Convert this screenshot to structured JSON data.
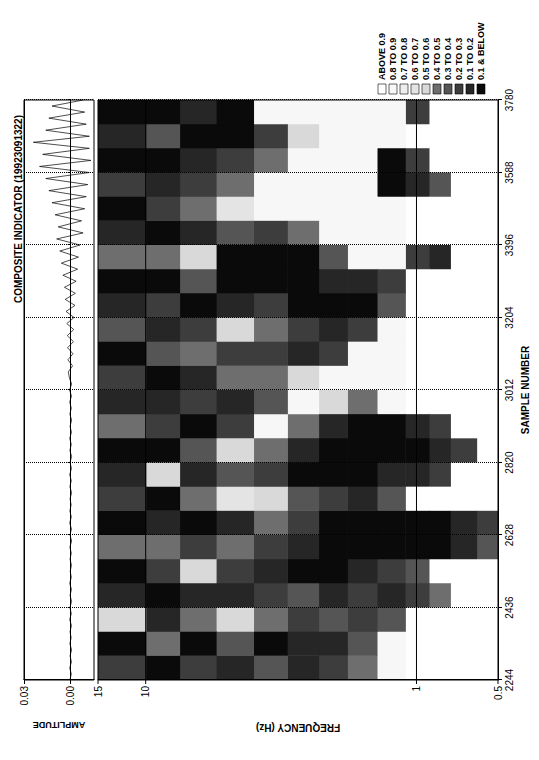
{
  "chart_data": [
    {
      "type": "line",
      "title": "COMPOSITE INDICATOR (19923091322)",
      "y_label": "AMPLITUDE",
      "color": "#000000",
      "grid": true,
      "tick_labels": "y",
      "xlim": [
        2244,
        3780
      ],
      "xticks": [
        2244,
        2436,
        2628,
        2820,
        3012,
        3204,
        3396,
        3588,
        3780
      ],
      "ylim": [
        -0.015,
        0.03
      ],
      "yticks": [
        {
          "value": 0,
          "label": "0.00"
        },
        {
          "value": 0.03,
          "label": "0.03"
        }
      ],
      "x": [
        2244,
        2260,
        2276,
        2292,
        2308,
        2324,
        2340,
        2356,
        2372,
        2388,
        2404,
        2420,
        2436,
        2452,
        2468,
        2484,
        2500,
        2516,
        2532,
        2548,
        2564,
        2580,
        2596,
        2612,
        2628,
        2644,
        2660,
        2676,
        2692,
        2708,
        2724,
        2740,
        2756,
        2772,
        2788,
        2804,
        2820,
        2836,
        2852,
        2868,
        2884,
        2900,
        2916,
        2932,
        2948,
        2964,
        2980,
        2996,
        3012,
        3028,
        3044,
        3060,
        3076,
        3092,
        3108,
        3124,
        3140,
        3156,
        3172,
        3188,
        3204,
        3220,
        3236,
        3252,
        3268,
        3284,
        3300,
        3316,
        3332,
        3348,
        3364,
        3380,
        3396,
        3412,
        3428,
        3444,
        3460,
        3476,
        3492,
        3508,
        3524,
        3540,
        3556,
        3572,
        3588,
        3604,
        3620,
        3636,
        3652,
        3668,
        3684,
        3700,
        3716,
        3732,
        3748,
        3764,
        3780
      ],
      "values": [
        0.0005,
        -0.0004,
        0.0006,
        -0.0005,
        0.0004,
        -0.0006,
        0.0005,
        -0.0003,
        0.0004,
        -0.0005,
        0.0006,
        -0.0004,
        0.0005,
        -0.0006,
        0.0004,
        -0.0005,
        0.0006,
        -0.0004,
        0.0003,
        -0.0005,
        0.0004,
        -0.0004,
        0.0005,
        -0.0006,
        0.0004,
        -0.0005,
        0.0006,
        -0.0004,
        0.0005,
        -0.0003,
        0.0004,
        -0.0006,
        0.0005,
        -0.0004,
        0.0006,
        -0.0005,
        0.0004,
        -0.0006,
        0.0005,
        -0.0004,
        0.0006,
        -0.0005,
        0.0004,
        -0.0006,
        0.0005,
        -0.0004,
        0.0006,
        -0.0005,
        0.0007,
        -0.0006,
        0.0008,
        0.0015,
        -0.0012,
        0.0018,
        -0.0015,
        0.002,
        -0.0018,
        0.0022,
        -0.002,
        0.0025,
        -0.0022,
        0.003,
        -0.0028,
        0.0035,
        -0.003,
        0.004,
        -0.0035,
        0.005,
        -0.0045,
        0.006,
        -0.005,
        0.007,
        -0.006,
        0.009,
        -0.008,
        0.008,
        -0.007,
        0.01,
        -0.009,
        0.012,
        -0.01,
        0.014,
        -0.011,
        0.016,
        -0.012,
        0.02,
        -0.013,
        0.018,
        -0.012,
        0.024,
        -0.012,
        0.016,
        -0.01,
        0.014,
        -0.009,
        0.012,
        -0.008
      ]
    },
    {
      "type": "heatmap",
      "x_label": "SAMPLE NUMBER",
      "y_label": "FREQUENCY (Hz)",
      "log": "y",
      "grid": true,
      "legend": "right",
      "xlim": [
        2244,
        3780
      ],
      "xticks": [
        2244,
        2436,
        2628,
        2820,
        3012,
        3204,
        3396,
        3588,
        3780
      ],
      "ylim": [
        0.5,
        15
      ],
      "yticks": [
        0.5,
        1,
        10,
        15
      ],
      "cells": {
        "x_edges": [
          2244,
          2308,
          2372,
          2436,
          2500,
          2564,
          2628,
          2692,
          2756,
          2820,
          2884,
          2948,
          3012,
          3076,
          3140,
          3204,
          3268,
          3332,
          3396,
          3460,
          3524,
          3588,
          3652,
          3716,
          3780
        ],
        "y_edges": [
          0.5,
          0.6,
          0.75,
          0.9,
          1.1,
          1.4,
          1.8,
          2.3,
          3,
          4,
          5.5,
          7.5,
          10,
          15
        ],
        "values": [
          [
            0.95,
            0.95,
            0.95,
            0.95,
            0.95,
            0.4,
            0.3,
            0.95,
            0.95,
            0.95,
            0.95,
            0.95,
            0.95,
            0.95,
            0.95,
            0.95,
            0.95,
            0.95,
            0.95,
            0.95,
            0.95,
            0.95,
            0.95,
            0.95
          ],
          [
            0.95,
            0.95,
            0.95,
            0.95,
            0.95,
            0.2,
            0.15,
            0.95,
            0.95,
            0.3,
            0.95,
            0.95,
            0.95,
            0.95,
            0.95,
            0.95,
            0.95,
            0.95,
            0.95,
            0.95,
            0.95,
            0.95,
            0.95,
            0.95
          ],
          [
            0.95,
            0.95,
            0.95,
            0.45,
            0.95,
            0.1,
            0.1,
            0.95,
            0.3,
            0.15,
            0.3,
            0.95,
            0.95,
            0.95,
            0.95,
            0.95,
            0.95,
            0.2,
            0.95,
            0.95,
            0.35,
            0.95,
            0.95,
            0.95
          ],
          [
            0.95,
            0.95,
            0.95,
            0.3,
            0.4,
            0.05,
            0.05,
            0.95,
            0.2,
            0.05,
            0.15,
            0.95,
            0.95,
            0.95,
            0.95,
            0.95,
            0.95,
            0.25,
            0.95,
            0.95,
            0.2,
            0.25,
            0.95,
            0.3
          ],
          [
            0.9,
            0.9,
            0.4,
            0.2,
            0.3,
            0.05,
            0.05,
            0.35,
            0.15,
            0.05,
            0.1,
            0.9,
            0.9,
            0.9,
            0.9,
            0.35,
            0.3,
            0.9,
            0.9,
            0.9,
            0.1,
            0.1,
            0.9,
            0.9
          ],
          [
            0.5,
            0.4,
            0.25,
            0.3,
            0.15,
            0.05,
            0.05,
            0.2,
            0.1,
            0.05,
            0.1,
            0.5,
            0.9,
            0.9,
            0.3,
            0.1,
            0.2,
            0.9,
            0.9,
            0.9,
            0.9,
            0.9,
            0.9,
            0.9
          ],
          [
            0.3,
            0.2,
            0.35,
            0.15,
            0.1,
            0.05,
            0.1,
            0.25,
            0.05,
            0.1,
            0.2,
            0.6,
            0.9,
            0.3,
            0.15,
            0.05,
            0.15,
            0.4,
            0.9,
            0.9,
            0.9,
            0.9,
            0.9,
            0.9
          ],
          [
            0.2,
            0.15,
            0.3,
            0.4,
            0.1,
            0.15,
            0.3,
            0.4,
            0.1,
            0.2,
            0.5,
            0.9,
            0.6,
            0.2,
            0.3,
            0.1,
            0.05,
            0.1,
            0.5,
            0.9,
            0.9,
            0.9,
            0.6,
            0.9
          ],
          [
            0.35,
            0.1,
            0.5,
            0.3,
            0.2,
            0.3,
            0.5,
            0.6,
            0.3,
            0.5,
            0.9,
            0.4,
            0.5,
            0.3,
            0.5,
            0.3,
            0.05,
            0.05,
            0.3,
            0.9,
            0.9,
            0.5,
            0.3,
            0.9
          ],
          [
            0.2,
            0.4,
            0.6,
            0.15,
            0.3,
            0.5,
            0.2,
            0.7,
            0.4,
            0.6,
            0.3,
            0.2,
            0.5,
            0.3,
            0.6,
            0.2,
            0.1,
            0.1,
            0.4,
            0.7,
            0.5,
            0.3,
            0.1,
            0.05
          ],
          [
            0.3,
            0.1,
            0.5,
            0.2,
            0.6,
            0.3,
            0.1,
            0.5,
            0.2,
            0.4,
            0.1,
            0.3,
            0.2,
            0.5,
            0.3,
            0.1,
            0.4,
            0.6,
            0.2,
            0.5,
            0.3,
            0.2,
            0.1,
            0.2
          ],
          [
            0.1,
            0.5,
            0.2,
            0.1,
            0.3,
            0.5,
            0.2,
            0.1,
            0.6,
            0.1,
            0.3,
            0.2,
            0.1,
            0.4,
            0.2,
            0.3,
            0.1,
            0.5,
            0.1,
            0.3,
            0.2,
            0.1,
            0.4,
            0.1
          ],
          [
            0.3,
            0.1,
            0.6,
            0.2,
            0.1,
            0.5,
            0.1,
            0.3,
            0.2,
            0.1,
            0.5,
            0.2,
            0.3,
            0.1,
            0.4,
            0.2,
            0.1,
            0.5,
            0.2,
            0.1,
            0.3,
            0.1,
            0.2,
            0.1
          ]
        ]
      },
      "color_scale": {
        "labels": [
          "ABOVE 0.9",
          "0.8 TO 0.9",
          "0.7 TO 0.8",
          "0.6 TO 0.7",
          "0.5 TO 0.6",
          "0.4 TO 0.5",
          "0.3 TO 0.4",
          "0.2 TO 0.3",
          "0.1 TO 0.2",
          "0.1 & BELOW"
        ],
        "lower_bounds": [
          0.9,
          0.8,
          0.7,
          0.6,
          0.5,
          0.4,
          0.3,
          0.2,
          0.1,
          null
        ],
        "colors": [
          "#ffffff",
          "#f7f7f7",
          "#eeeeee",
          "#e4e4e4",
          "#d9d9d9",
          "#6e6e6e",
          "#555555",
          "#3d3d3d",
          "#262626",
          "#0a0a0a"
        ]
      }
    }
  ]
}
